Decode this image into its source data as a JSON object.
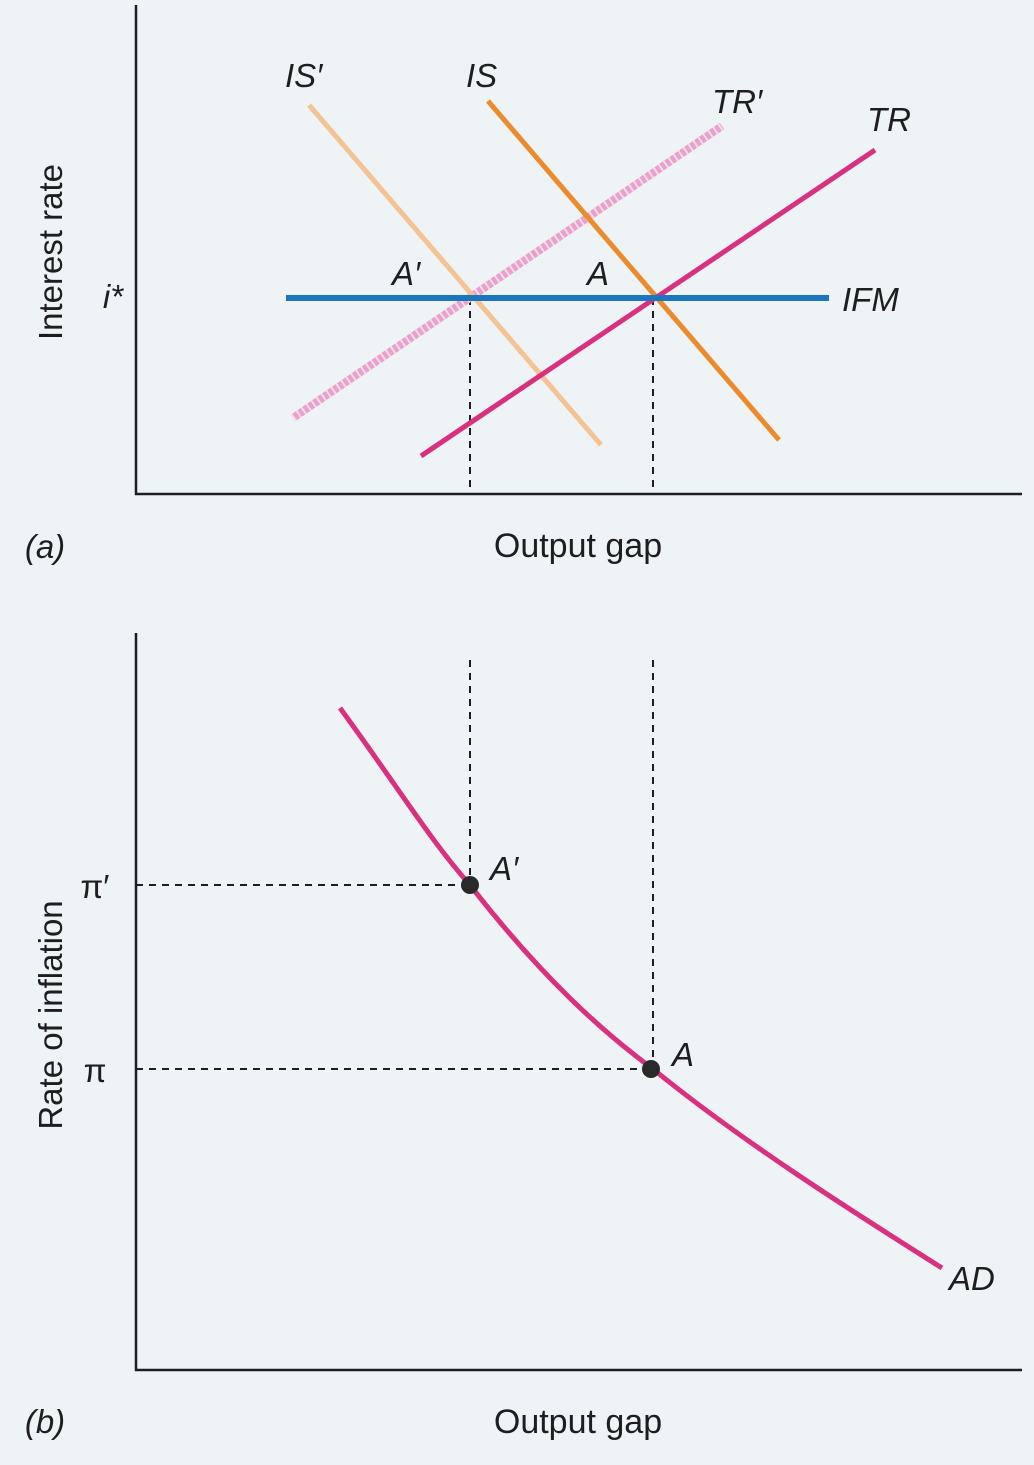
{
  "panel_a": {
    "panel_label": "(a)",
    "y_axis_label": "Interest rate",
    "x_axis_label": "Output gap",
    "y_tick_label": "i*",
    "curves": {
      "is_prime": {
        "label": "IS′",
        "color": "#f5c393"
      },
      "is": {
        "label": "IS",
        "color": "#ec8a2c"
      },
      "tr_prime": {
        "label": "TR′",
        "color": "#e9a0cb"
      },
      "tr": {
        "label": "TR",
        "color": "#d9307f"
      },
      "ifm": {
        "label": "IFM",
        "color": "#1a76bf"
      }
    },
    "points": {
      "a_prime": "A′",
      "a": "A"
    }
  },
  "panel_b": {
    "panel_label": "(b)",
    "y_axis_label": "Rate of inflation",
    "x_axis_label": "Output gap",
    "y_tick_high": "π′",
    "y_tick_low": "π",
    "curves": {
      "ad": {
        "label": "AD",
        "color": "#d9307f"
      }
    },
    "points": {
      "a_prime": "A′",
      "a": "A"
    }
  }
}
